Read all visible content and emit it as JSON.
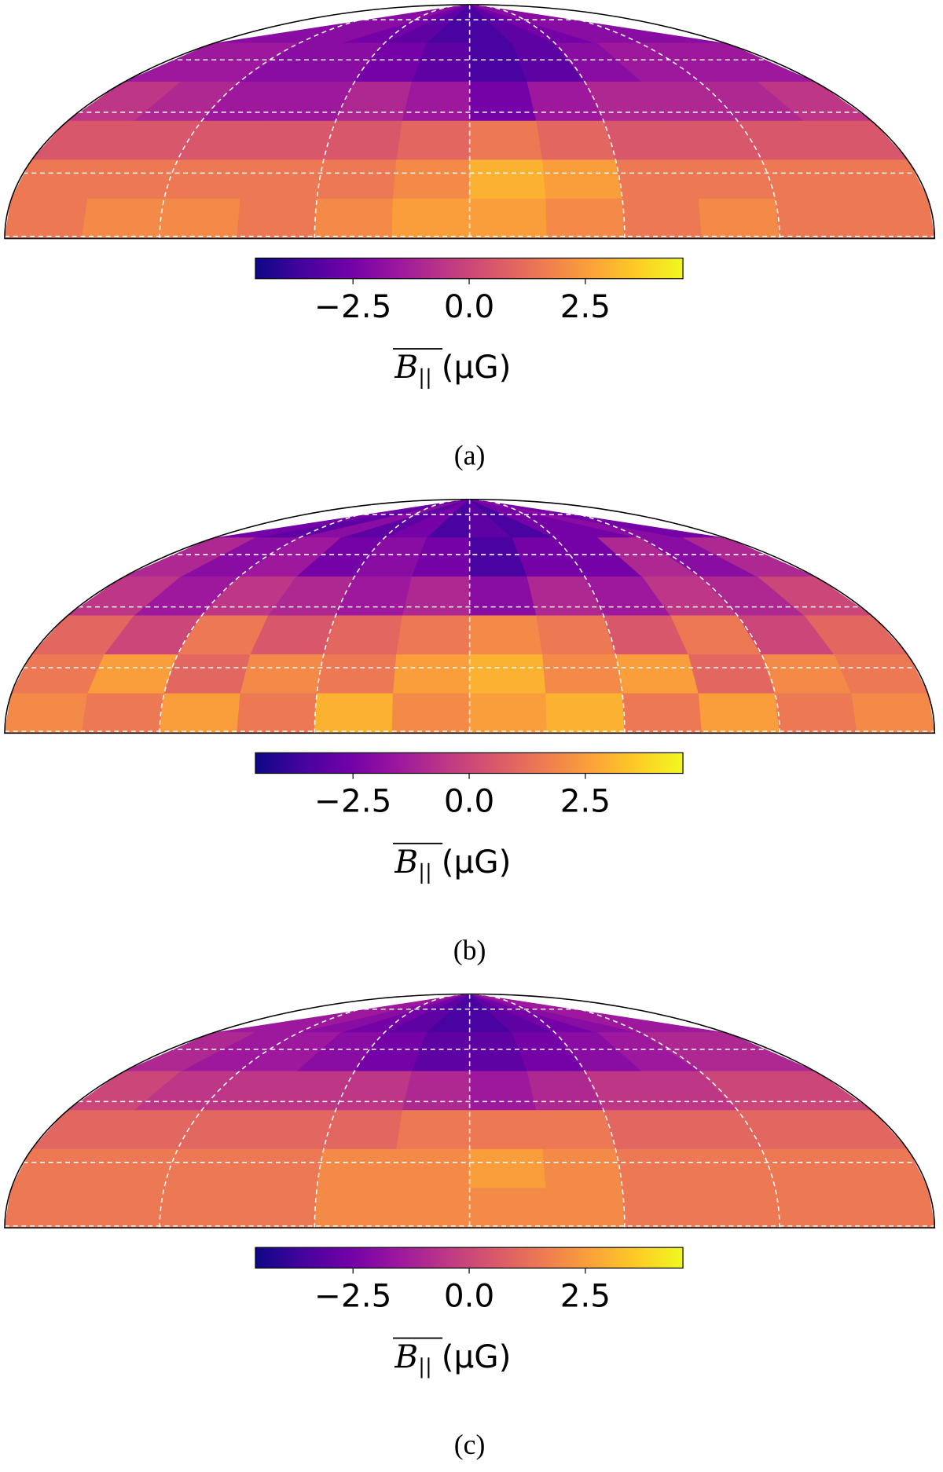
{
  "chart_data": [
    {
      "type": "heatmap",
      "title": "(a)",
      "colormap": "plasma",
      "clim": [
        -4.6,
        4.6
      ],
      "cticks": [
        {
          "value": -2.5,
          "label": "−2.5"
        },
        {
          "value": 0,
          "label": "0.0"
        },
        {
          "value": 2.5,
          "label": "2.5"
        }
      ],
      "colorbar_label": {
        "symbol": "B",
        "subscript": "||",
        "unit": "(μG)"
      },
      "lat_grid": [
        0,
        15,
        30,
        45,
        60
      ],
      "lon_grid": [
        -120,
        -60,
        0,
        60,
        120
      ],
      "values": [
        [
          -2,
          -2,
          -2,
          -2.5,
          -3,
          -3.5,
          -3.5,
          -3,
          -2.5,
          -2,
          -2,
          -2
        ],
        [
          -1.5,
          -1.5,
          -2,
          -2,
          -2.5,
          -3,
          -3.5,
          -3,
          -2,
          -1.5,
          -1.5,
          -1.5
        ],
        [
          -0.5,
          -1,
          -1.5,
          -1.5,
          -1,
          -1.5,
          -2.5,
          -1.5,
          -1,
          -1,
          -1,
          -0.5
        ],
        [
          0.5,
          0.5,
          0.5,
          0.5,
          0.5,
          1,
          1.5,
          1,
          0.5,
          0.5,
          0.5,
          0.5
        ],
        [
          1.5,
          1.5,
          1.5,
          1.5,
          1.5,
          2,
          3,
          2.5,
          1.5,
          1.5,
          1.5,
          1.5
        ],
        [
          1.5,
          2,
          2,
          1.5,
          2,
          2.5,
          2.5,
          2,
          1.5,
          2,
          1.5,
          1.5
        ]
      ]
    },
    {
      "type": "heatmap",
      "title": "(b)",
      "colormap": "plasma",
      "clim": [
        -4.6,
        4.6
      ],
      "cticks": [
        {
          "value": -2.5,
          "label": "−2.5"
        },
        {
          "value": 0,
          "label": "0.0"
        },
        {
          "value": 2.5,
          "label": "2.5"
        }
      ],
      "colorbar_label": {
        "symbol": "B",
        "subscript": "||",
        "unit": "(μG)"
      },
      "lat_grid": [
        0,
        15,
        30,
        45,
        60
      ],
      "lon_grid": [
        -120,
        -60,
        0,
        60,
        120
      ],
      "values": [
        [
          -2.5,
          -3,
          -2,
          -3,
          -2.5,
          -3.5,
          -3,
          -3.5,
          -2.5,
          -2.5,
          -2,
          -2.5
        ],
        [
          -1,
          -2,
          -1.5,
          -2.5,
          -2,
          -2.5,
          -3.5,
          -2.5,
          -2.5,
          -1,
          -2,
          -1
        ],
        [
          -0.5,
          -1.5,
          -0.5,
          -1,
          -1.5,
          -1,
          -2,
          -1,
          -1.5,
          -0.5,
          -1,
          0
        ],
        [
          1,
          0,
          1.5,
          0.5,
          1,
          1.5,
          2,
          1.5,
          0.5,
          1.5,
          0,
          1
        ],
        [
          1.5,
          2.5,
          1,
          2,
          1.5,
          2.5,
          3,
          2,
          2.5,
          1,
          2,
          1.5
        ],
        [
          2,
          1.5,
          2.5,
          1.5,
          3,
          2,
          2.5,
          3,
          1.5,
          2.5,
          1.5,
          2
        ]
      ]
    },
    {
      "type": "heatmap",
      "title": "(c)",
      "colormap": "plasma",
      "clim": [
        -4.6,
        4.6
      ],
      "cticks": [
        {
          "value": -2.5,
          "label": "−2.5"
        },
        {
          "value": 0,
          "label": "0.0"
        },
        {
          "value": 2.5,
          "label": "2.5"
        }
      ],
      "colorbar_label": {
        "symbol": "B",
        "subscript": "||",
        "unit": "(μG)"
      },
      "lat_grid": [
        0,
        15,
        30,
        45,
        60
      ],
      "lon_grid": [
        -120,
        -60,
        0,
        60,
        120
      ],
      "values": [
        [
          -1.5,
          -1.5,
          -2,
          -2.5,
          -3,
          -3.5,
          -3.5,
          -3,
          -2.5,
          -2,
          -1.5,
          -1.5
        ],
        [
          -1,
          -1.5,
          -1.5,
          -2,
          -2.5,
          -3,
          -3,
          -2.5,
          -2,
          -1.5,
          -1,
          -1
        ],
        [
          0,
          -0.5,
          -0.5,
          -0.5,
          -0.5,
          -1,
          -1.5,
          -1,
          -0.5,
          -0.5,
          0,
          0
        ],
        [
          1,
          1,
          1,
          1,
          1,
          1.5,
          1.5,
          1.5,
          1,
          1,
          1,
          1
        ],
        [
          1.5,
          1.5,
          1.5,
          1.5,
          2,
          2,
          2.5,
          2,
          1.5,
          1.5,
          1.5,
          1.5
        ],
        [
          1.5,
          1.5,
          1.5,
          1.5,
          2,
          2,
          2,
          2,
          1.5,
          1.5,
          1.5,
          1.5
        ]
      ]
    }
  ]
}
